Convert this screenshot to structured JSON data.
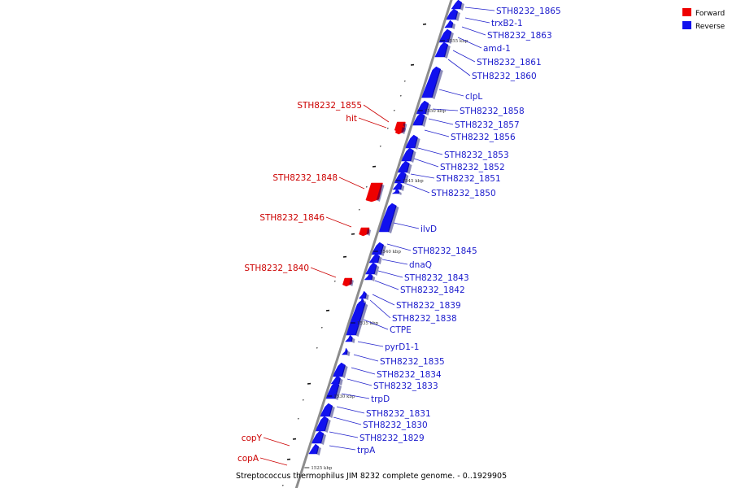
{
  "caption": "Streptococcus thermophilus JIM 8232 complete genome. - 0..1929905",
  "legend": [
    {
      "label": "Forward",
      "color": "#ee0000"
    },
    {
      "label": "Reverse",
      "color": "#1111ee"
    }
  ],
  "colors": {
    "forward": "#ee0000",
    "reverse": "#1111ee",
    "backbone": "#8c8c8c",
    "leader_forward": "#cc0000",
    "leader_reverse": "#2222cc"
  },
  "scale_ticks": [
    "1555 kbp",
    "1550 kbp",
    "1545 kbp",
    "1540 kbp",
    "1535 kbp",
    "1530 kbp",
    "1525 kbp"
  ],
  "genes": [
    {
      "name": "STH8232_1865",
      "strand": "reverse"
    },
    {
      "name": "trxB2-1",
      "strand": "reverse"
    },
    {
      "name": "STH8232_1863",
      "strand": "reverse"
    },
    {
      "name": "amd-1",
      "strand": "reverse"
    },
    {
      "name": "STH8232_1861",
      "strand": "reverse"
    },
    {
      "name": "STH8232_1860",
      "strand": "reverse"
    },
    {
      "name": "clpL",
      "strand": "reverse"
    },
    {
      "name": "STH8232_1858",
      "strand": "reverse"
    },
    {
      "name": "STH8232_1857",
      "strand": "reverse"
    },
    {
      "name": "STH8232_1856",
      "strand": "reverse"
    },
    {
      "name": "STH8232_1855",
      "strand": "forward"
    },
    {
      "name": "hit",
      "strand": "forward"
    },
    {
      "name": "STH8232_1853",
      "strand": "reverse"
    },
    {
      "name": "STH8232_1852",
      "strand": "reverse"
    },
    {
      "name": "STH8232_1851",
      "strand": "reverse"
    },
    {
      "name": "STH8232_1850",
      "strand": "reverse"
    },
    {
      "name": "STH8232_1848",
      "strand": "forward"
    },
    {
      "name": "ilvD",
      "strand": "reverse"
    },
    {
      "name": "STH8232_1846",
      "strand": "forward"
    },
    {
      "name": "STH8232_1845",
      "strand": "reverse"
    },
    {
      "name": "dnaQ",
      "strand": "reverse"
    },
    {
      "name": "STH8232_1843",
      "strand": "reverse"
    },
    {
      "name": "STH8232_1842",
      "strand": "reverse"
    },
    {
      "name": "STH8232_1840",
      "strand": "forward"
    },
    {
      "name": "STH8232_1839",
      "strand": "reverse"
    },
    {
      "name": "STH8232_1838",
      "strand": "reverse"
    },
    {
      "name": "CTPE",
      "strand": "reverse"
    },
    {
      "name": "pyrD1-1",
      "strand": "reverse"
    },
    {
      "name": "STH8232_1835",
      "strand": "reverse"
    },
    {
      "name": "STH8232_1834",
      "strand": "reverse"
    },
    {
      "name": "STH8232_1833",
      "strand": "reverse"
    },
    {
      "name": "trpD",
      "strand": "reverse"
    },
    {
      "name": "STH8232_1831",
      "strand": "reverse"
    },
    {
      "name": "STH8232_1830",
      "strand": "reverse"
    },
    {
      "name": "STH8232_1829",
      "strand": "reverse"
    },
    {
      "name": "trpA",
      "strand": "reverse"
    },
    {
      "name": "copY",
      "strand": "forward"
    },
    {
      "name": "copA",
      "strand": "forward"
    }
  ]
}
